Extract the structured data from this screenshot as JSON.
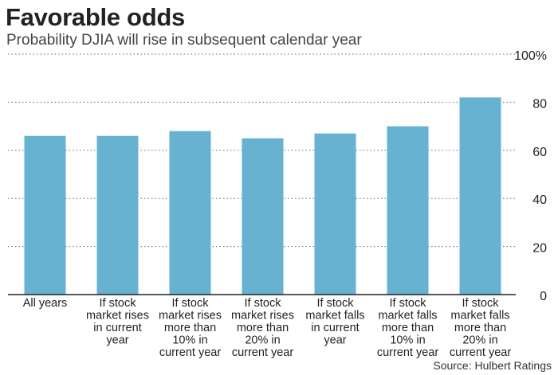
{
  "title": "Favorable odds",
  "subtitle": "Probability DJIA will rise in subsequent calendar year",
  "source": "Source: Hulbert Ratings",
  "colors": {
    "bar": "#67b1d1",
    "grid": "#666666",
    "axis": "#222222",
    "text": "#222222"
  },
  "chart_data": {
    "type": "bar",
    "title": "Favorable odds",
    "subtitle": "Probability DJIA will rise in subsequent calendar year",
    "xlabel": "",
    "ylabel": "",
    "ylim": [
      0,
      100
    ],
    "yticks": [
      0,
      20,
      40,
      60,
      80,
      100
    ],
    "ytick_labels": [
      "0",
      "20",
      "40",
      "60",
      "80",
      "100%"
    ],
    "grid": true,
    "categories": [
      "All years",
      "If stock market rises in current year",
      "If stock market rises more than 10% in current year",
      "If stock market rises more than 20% in current year",
      "If stock market falls in current year",
      "If stock market falls more than 10% in current year",
      "If stock market falls more than 20% in current year"
    ],
    "category_lines": [
      [
        "All years"
      ],
      [
        "If stock",
        "market rises",
        "in current",
        "year"
      ],
      [
        "If stock",
        "market rises",
        "more than",
        "10% in",
        "current year"
      ],
      [
        "If stock",
        "market rises",
        "more than",
        "20% in",
        "current year"
      ],
      [
        "If stock",
        "market falls",
        "in current",
        "year"
      ],
      [
        "If stock",
        "market falls",
        "more than",
        "10% in",
        "current year"
      ],
      [
        "If stock",
        "market falls",
        "more than",
        "20% in",
        "current year"
      ]
    ],
    "values": [
      66,
      66,
      68,
      65,
      67,
      70,
      82
    ]
  }
}
